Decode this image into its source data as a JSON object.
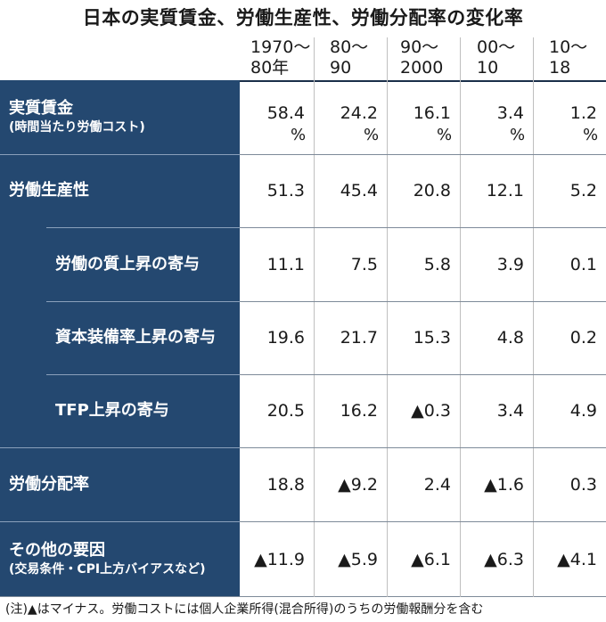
{
  "title": "日本の実質賃金、労働生産性、労働分配率の変化率",
  "columns": [
    {
      "line1": "1970〜",
      "line2": "80年"
    },
    {
      "line1": "80〜",
      "line2": "90"
    },
    {
      "line1": "90〜",
      "line2": "2000"
    },
    {
      "line1": "00〜",
      "line2": "10"
    },
    {
      "line1": "10〜",
      "line2": "18"
    }
  ],
  "rows": [
    {
      "label": "実質賃金",
      "sublabel": "(時間当たり労働コスト)",
      "values": [
        "58.4",
        "24.2",
        "16.1",
        "3.4",
        "1.2"
      ],
      "unit": "%"
    },
    {
      "label": "労働生産性",
      "sublabel": "",
      "values": [
        "51.3",
        "45.4",
        "20.8",
        "12.1",
        "5.2"
      ]
    },
    {
      "label": "労働の質上昇の寄与",
      "sublabel": "",
      "values": [
        "11.1",
        "7.5",
        "5.8",
        "3.9",
        "0.1"
      ]
    },
    {
      "label": "資本装備率上昇の寄与",
      "sublabel": "",
      "values": [
        "19.6",
        "21.7",
        "15.3",
        "4.8",
        "0.2"
      ]
    },
    {
      "label": "TFP上昇の寄与",
      "sublabel": "",
      "values": [
        "20.5",
        "16.2",
        "▲0.3",
        "3.4",
        "4.9"
      ]
    },
    {
      "label": "労働分配率",
      "sublabel": "",
      "values": [
        "18.8",
        "▲9.2",
        "2.4",
        "▲1.6",
        "0.3"
      ]
    },
    {
      "label": "その他の要因",
      "sublabel": "(交易条件・CPI上方バイアスなど)",
      "values": [
        "▲11.9",
        "▲5.9",
        "▲6.1",
        "▲6.3",
        "▲4.1"
      ]
    }
  ],
  "footnote": "(注)▲はマイナス。労働コストには個人企業所得(混合所得)のうちの労働報酬分を含む",
  "colors": {
    "label_bg": "#244870",
    "label_text": "#ffffff",
    "text": "#1a1a1a"
  },
  "chart_data": {
    "type": "table",
    "title": "日本の実質賃金、労働生産性、労働分配率の変化率",
    "categories": [
      "1970〜80年",
      "80〜90",
      "90〜2000",
      "00〜10",
      "10〜18"
    ],
    "unit": "%",
    "series": [
      {
        "name": "実質賃金(時間当たり労働コスト)",
        "values": [
          58.4,
          24.2,
          16.1,
          3.4,
          1.2
        ]
      },
      {
        "name": "労働生産性",
        "values": [
          51.3,
          45.4,
          20.8,
          12.1,
          5.2
        ]
      },
      {
        "name": "労働の質上昇の寄与",
        "values": [
          11.1,
          7.5,
          5.8,
          3.9,
          0.1
        ]
      },
      {
        "name": "資本装備率上昇の寄与",
        "values": [
          19.6,
          21.7,
          15.3,
          4.8,
          0.2
        ]
      },
      {
        "name": "TFP上昇の寄与",
        "values": [
          20.5,
          16.2,
          -0.3,
          3.4,
          4.9
        ]
      },
      {
        "name": "労働分配率",
        "values": [
          18.8,
          -9.2,
          2.4,
          -1.6,
          0.3
        ]
      },
      {
        "name": "その他の要因(交易条件・CPI上方バイアスなど)",
        "values": [
          -11.9,
          -5.9,
          -6.1,
          -6.3,
          -4.1
        ]
      }
    ]
  }
}
